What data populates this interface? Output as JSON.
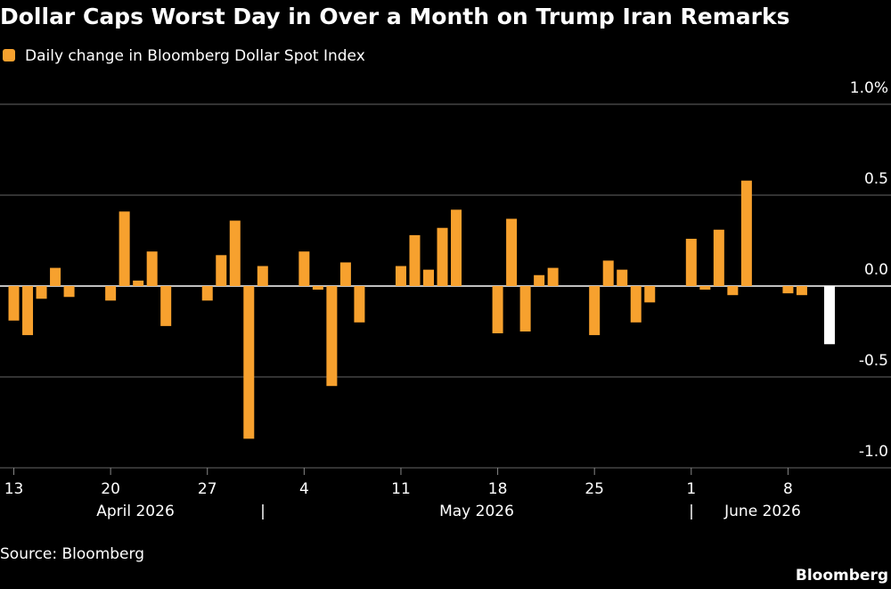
{
  "chart_data": {
    "type": "bar",
    "title": "Dollar Caps Worst Day in Over a Month on Trump Iran Remarks",
    "legend": "Daily change in Bloomberg Dollar Spot Index",
    "source": "Source: Bloomberg",
    "brand": "Bloomberg",
    "color": "#f7a12e",
    "x": [
      "2026-04-13",
      "2026-04-14",
      "2026-04-15",
      "2026-04-16",
      "2026-04-17",
      "2026-04-20",
      "2026-04-21",
      "2026-04-22",
      "2026-04-23",
      "2026-04-24",
      "2026-04-27",
      "2026-04-28",
      "2026-04-29",
      "2026-04-30",
      "2026-05-01",
      "2026-05-04",
      "2026-05-05",
      "2026-05-06",
      "2026-05-07",
      "2026-05-08",
      "2026-05-11",
      "2026-05-12",
      "2026-05-13",
      "2026-05-14",
      "2026-05-15",
      "2026-05-18",
      "2026-05-19",
      "2026-05-20",
      "2026-05-21",
      "2026-05-22",
      "2026-05-25",
      "2026-05-26",
      "2026-05-27",
      "2026-05-28",
      "2026-05-29",
      "2026-06-01",
      "2026-06-02",
      "2026-06-03",
      "2026-06-04",
      "2026-06-05",
      "2026-06-08",
      "2026-06-09",
      "2026-06-11"
    ],
    "values": [
      -0.19,
      -0.27,
      -0.07,
      0.1,
      -0.06,
      -0.08,
      0.41,
      0.03,
      0.19,
      -0.22,
      -0.08,
      0.17,
      0.36,
      -0.84,
      0.11,
      0.19,
      -0.02,
      -0.55,
      0.13,
      -0.2,
      0.11,
      0.28,
      0.09,
      0.32,
      0.42,
      -0.26,
      0.37,
      -0.25,
      0.06,
      0.1,
      -0.27,
      0.14,
      0.09,
      -0.2,
      -0.09,
      0.26,
      -0.02,
      0.31,
      -0.05,
      0.58,
      -0.04,
      -0.05,
      -0.32
    ],
    "colors": [
      "#f7a12e",
      "#f7a12e",
      "#f7a12e",
      "#f7a12e",
      "#f7a12e",
      "#f7a12e",
      "#f7a12e",
      "#f7a12e",
      "#f7a12e",
      "#f7a12e",
      "#f7a12e",
      "#f7a12e",
      "#f7a12e",
      "#f7a12e",
      "#f7a12e",
      "#f7a12e",
      "#f7a12e",
      "#f7a12e",
      "#f7a12e",
      "#f7a12e",
      "#f7a12e",
      "#f7a12e",
      "#f7a12e",
      "#f7a12e",
      "#f7a12e",
      "#f7a12e",
      "#f7a12e",
      "#f7a12e",
      "#f7a12e",
      "#f7a12e",
      "#f7a12e",
      "#f7a12e",
      "#f7a12e",
      "#f7a12e",
      "#f7a12e",
      "#f7a12e",
      "#f7a12e",
      "#f7a12e",
      "#f7a12e",
      "#f7a12e",
      "#f7a12e",
      "#f7a12e",
      "#ffffff"
    ],
    "xlim": [
      "2026-04-12",
      "2026-06-13"
    ],
    "xticks": [
      {
        "value": "2026-04-13",
        "label": "13"
      },
      {
        "value": "2026-04-20",
        "label": "20"
      },
      {
        "value": "2026-04-27",
        "label": "27"
      },
      {
        "value": "2026-05-04",
        "label": "4"
      },
      {
        "value": "2026-05-11",
        "label": "11"
      },
      {
        "value": "2026-05-18",
        "label": "18"
      },
      {
        "value": "2026-05-25",
        "label": "25"
      },
      {
        "value": "2026-06-01",
        "label": "1"
      },
      {
        "value": "2026-06-08",
        "label": "8"
      }
    ],
    "months": [
      "April 2026",
      "May 2026",
      "June 2026"
    ],
    "month_dividers": [
      "|",
      "|"
    ],
    "ylim": [
      -1,
      1
    ],
    "yticks": [
      {
        "value": 1,
        "label": "1.0%"
      },
      0.5,
      {
        "value": 0,
        "label": "0.0"
      },
      -0.5,
      {
        "value": -1,
        "label": "-1.0"
      }
    ],
    "grid": true
  }
}
